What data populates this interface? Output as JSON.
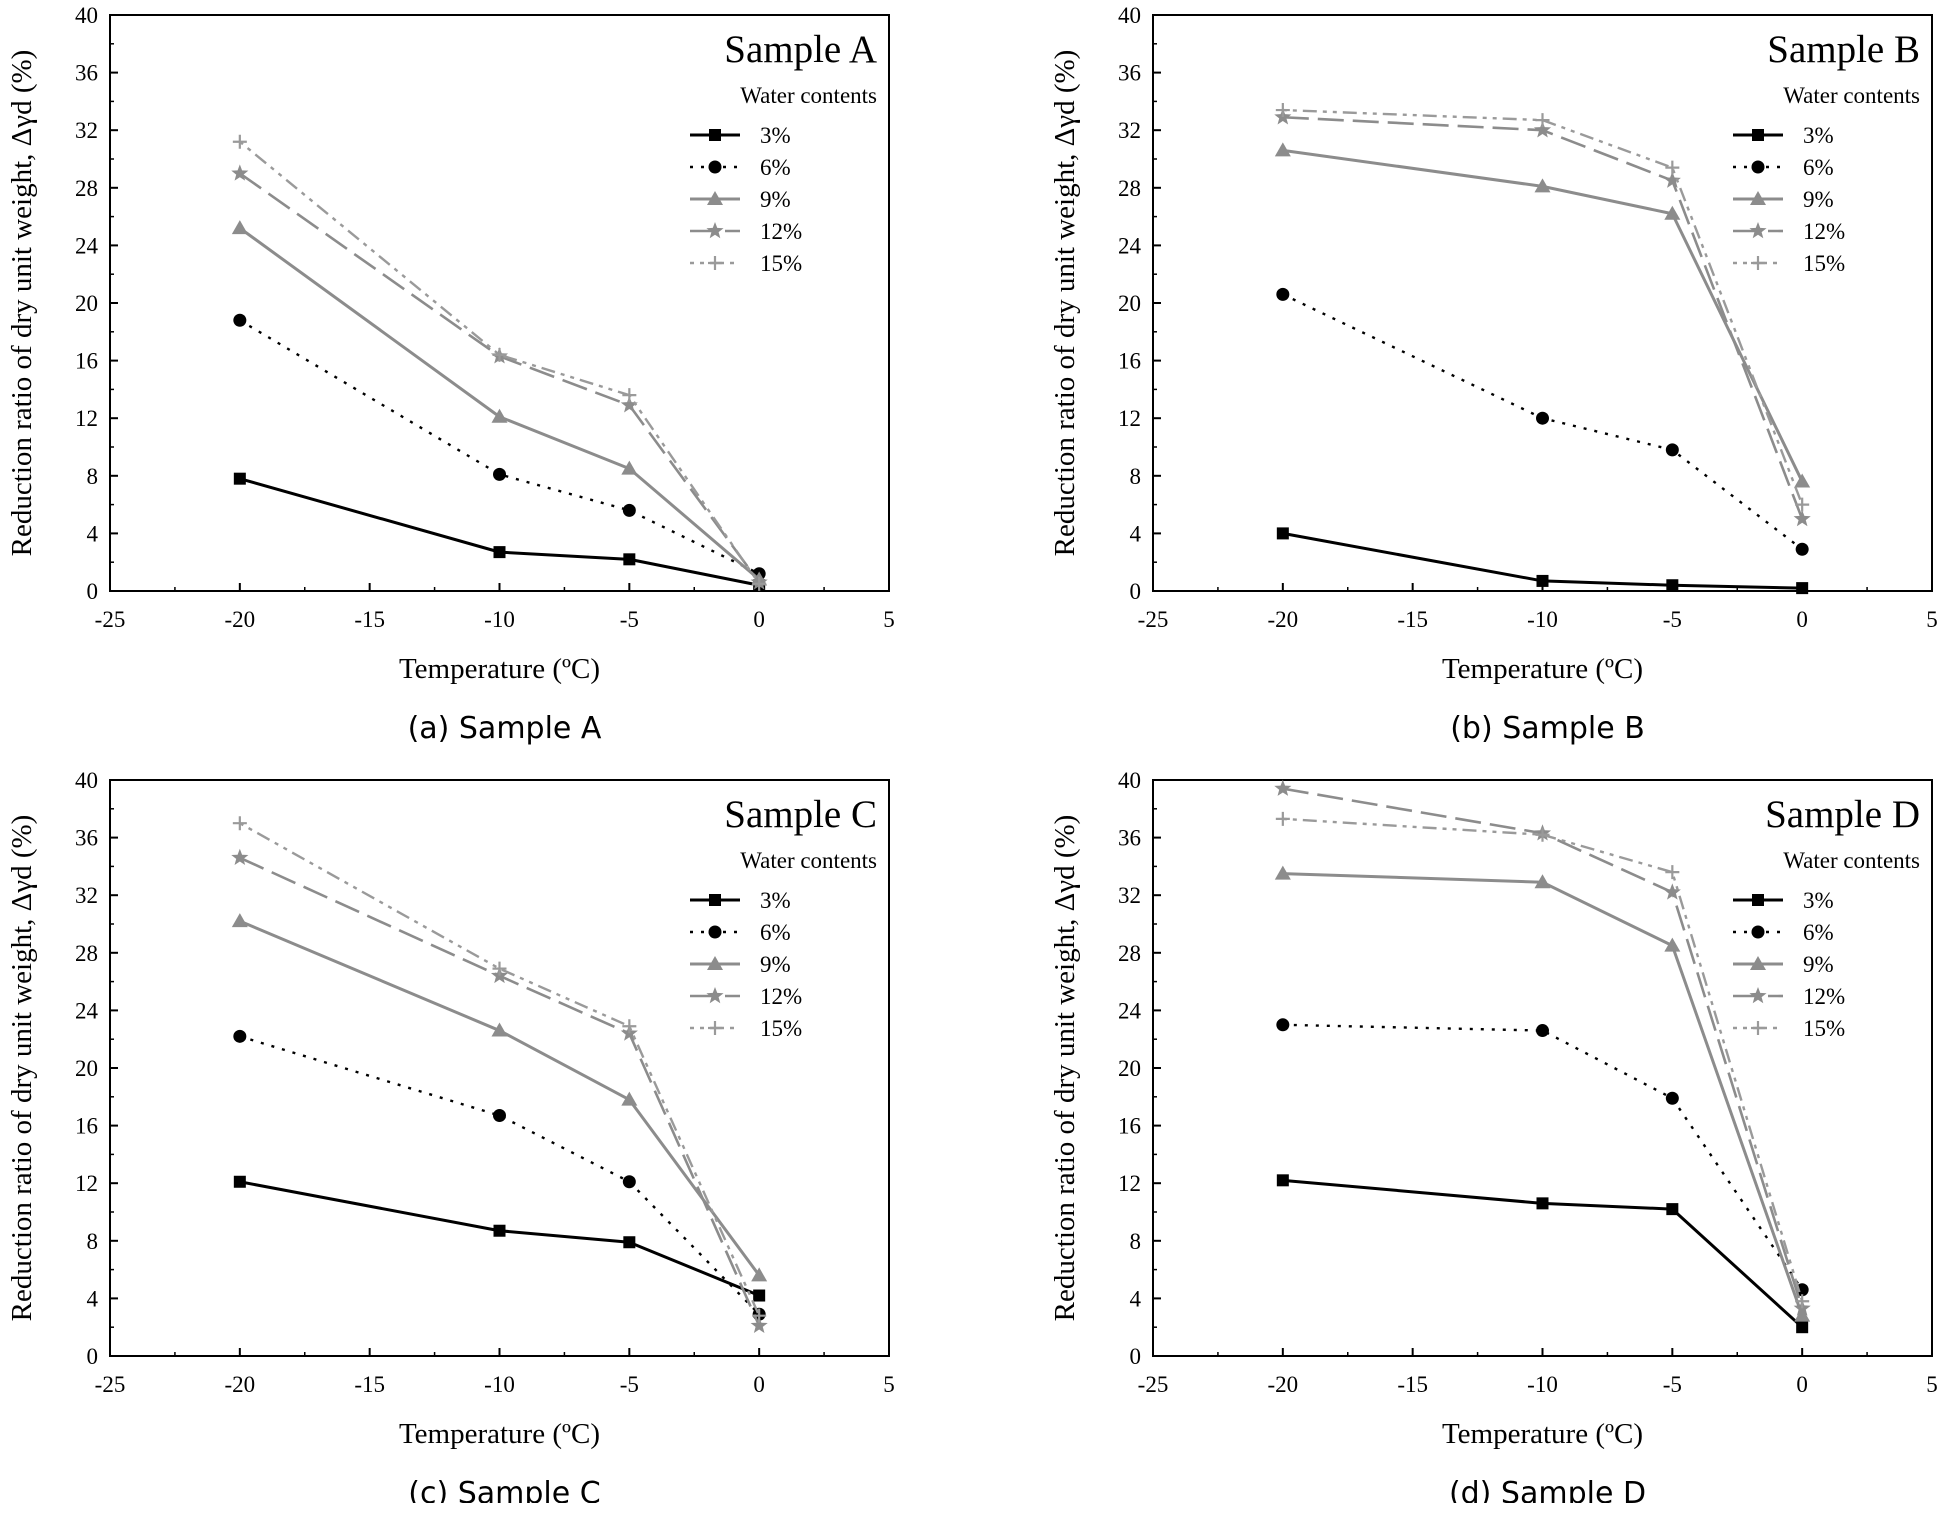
{
  "chart_data": [
    {
      "type": "line",
      "caption": "(a) Sample A",
      "title": "Sample A",
      "xlabel": "Temperature (ºC)",
      "ylabel": "Reduction ratio of dry unit weight, Δγd (%)",
      "xlim": [
        -25,
        5
      ],
      "ylim": [
        0,
        40
      ],
      "xticks": [
        -25,
        -20,
        -15,
        -10,
        -5,
        0,
        5
      ],
      "yticks": [
        0,
        4,
        8,
        12,
        16,
        20,
        24,
        28,
        32,
        36,
        40
      ],
      "legend_title": "Water contents",
      "legend_position": "top-right",
      "grid": false,
      "x": [
        -20,
        -10,
        -5,
        0
      ],
      "series": [
        {
          "name": "3%",
          "values": [
            7.8,
            2.7,
            2.2,
            0.4
          ]
        },
        {
          "name": "6%",
          "values": [
            18.8,
            8.1,
            5.6,
            1.2
          ]
        },
        {
          "name": "9%",
          "values": [
            25.2,
            12.1,
            8.5,
            0.8
          ]
        },
        {
          "name": "12%",
          "values": [
            29.0,
            16.3,
            12.9,
            0.6
          ]
        },
        {
          "name": "15%",
          "values": [
            31.2,
            16.4,
            13.6,
            0.5
          ]
        }
      ]
    },
    {
      "type": "line",
      "caption": "(b) Sample B",
      "title": "Sample B",
      "xlabel": "Temperature (ºC)",
      "ylabel": "Reduction ratio of dry unit weight, Δγd (%)",
      "xlim": [
        -25,
        5
      ],
      "ylim": [
        0,
        40
      ],
      "xticks": [
        -25,
        -20,
        -15,
        -10,
        -5,
        0,
        5
      ],
      "yticks": [
        0,
        4,
        8,
        12,
        16,
        20,
        24,
        28,
        32,
        36,
        40
      ],
      "legend_title": "Water contents",
      "legend_position": "top-right",
      "grid": false,
      "x": [
        -20,
        -10,
        -5,
        0
      ],
      "series": [
        {
          "name": "3%",
          "values": [
            4.0,
            0.7,
            0.4,
            0.2
          ]
        },
        {
          "name": "6%",
          "values": [
            20.6,
            12.0,
            9.8,
            2.9
          ]
        },
        {
          "name": "9%",
          "values": [
            30.6,
            28.1,
            26.2,
            7.6
          ]
        },
        {
          "name": "12%",
          "values": [
            32.9,
            32.0,
            28.5,
            5.0
          ]
        },
        {
          "name": "15%",
          "values": [
            33.4,
            32.7,
            29.4,
            6.0
          ]
        }
      ]
    },
    {
      "type": "line",
      "caption": "(c) Sample C",
      "title": "Sample C",
      "xlabel": "Temperature (ºC)",
      "ylabel": "Reduction ratio of dry unit weight, Δγd (%)",
      "xlim": [
        -25,
        5
      ],
      "ylim": [
        0,
        40
      ],
      "xticks": [
        -25,
        -20,
        -15,
        -10,
        -5,
        0,
        5
      ],
      "yticks": [
        0,
        4,
        8,
        12,
        16,
        20,
        24,
        28,
        32,
        36,
        40
      ],
      "legend_title": "Water contents",
      "legend_position": "top-right",
      "grid": false,
      "x": [
        -20,
        -10,
        -5,
        0
      ],
      "series": [
        {
          "name": "3%",
          "values": [
            12.1,
            8.7,
            7.9,
            4.2
          ]
        },
        {
          "name": "6%",
          "values": [
            22.2,
            16.7,
            12.1,
            2.9
          ]
        },
        {
          "name": "9%",
          "values": [
            30.2,
            22.6,
            17.8,
            5.6
          ]
        },
        {
          "name": "12%",
          "values": [
            34.6,
            26.4,
            22.4,
            2.1
          ]
        },
        {
          "name": "15%",
          "values": [
            37.0,
            26.9,
            22.9,
            2.8
          ]
        }
      ]
    },
    {
      "type": "line",
      "caption": "(d) Sample D",
      "title": "Sample D",
      "xlabel": "Temperature (ºC)",
      "ylabel": "Reduction ratio of dry unit weight, Δγd (%)",
      "xlim": [
        -25,
        5
      ],
      "ylim": [
        0,
        40
      ],
      "xticks": [
        -25,
        -20,
        -15,
        -10,
        -5,
        0,
        5
      ],
      "yticks": [
        0,
        4,
        8,
        12,
        16,
        20,
        24,
        28,
        32,
        36,
        40
      ],
      "legend_title": "Water contents",
      "legend_position": "top-right",
      "grid": false,
      "x": [
        -20,
        -10,
        -5,
        0
      ],
      "series": [
        {
          "name": "3%",
          "values": [
            12.2,
            10.6,
            10.2,
            2.0
          ]
        },
        {
          "name": "6%",
          "values": [
            23.0,
            22.6,
            17.9,
            4.6
          ]
        },
        {
          "name": "9%",
          "values": [
            33.5,
            32.9,
            28.5,
            2.8
          ]
        },
        {
          "name": "12%",
          "values": [
            39.4,
            36.3,
            32.2,
            3.3
          ]
        },
        {
          "name": "15%",
          "values": [
            37.3,
            36.2,
            33.6,
            3.8
          ]
        }
      ]
    }
  ]
}
